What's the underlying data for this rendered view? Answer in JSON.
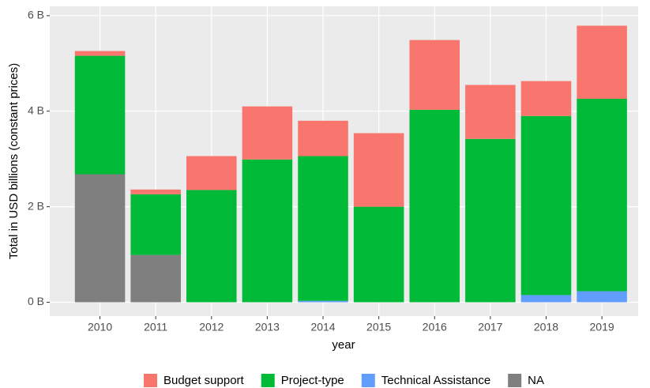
{
  "chart_data": {
    "type": "stacked_bar",
    "x_label": "year",
    "y_label": "Total in USD billions (constant prices)",
    "categories": [
      "2010",
      "2011",
      "2012",
      "2013",
      "2014",
      "2015",
      "2016",
      "2017",
      "2018",
      "2019"
    ],
    "series": [
      {
        "name": "Budget support",
        "color": "#F8766D",
        "values": [
          0.1,
          0.1,
          0.71,
          1.11,
          0.74,
          1.54,
          1.46,
          1.13,
          0.73,
          1.53
        ]
      },
      {
        "name": "Project-type",
        "color": "#00BA38",
        "values": [
          2.48,
          1.27,
          2.35,
          2.99,
          3.03,
          2.0,
          4.03,
          3.42,
          3.75,
          4.03
        ]
      },
      {
        "name": "Technical Assistance",
        "color": "#619CFF",
        "values": [
          0,
          0,
          0,
          0,
          0.03,
          0,
          0,
          0,
          0.15,
          0.23
        ]
      },
      {
        "name": "NA",
        "color": "#7F7F7F",
        "values": [
          2.68,
          0.99,
          0,
          0,
          0,
          0,
          0,
          0,
          0,
          0
        ]
      }
    ],
    "ylim": [
      -0.29,
      6.08
    ],
    "yticks": [
      {
        "value": 0,
        "label": "0 B"
      },
      {
        "value": 2,
        "label": "2 B"
      },
      {
        "value": 4,
        "label": "4 B"
      },
      {
        "value": 6,
        "label": "6 B"
      }
    ],
    "grid": true,
    "legend": "bottom"
  }
}
